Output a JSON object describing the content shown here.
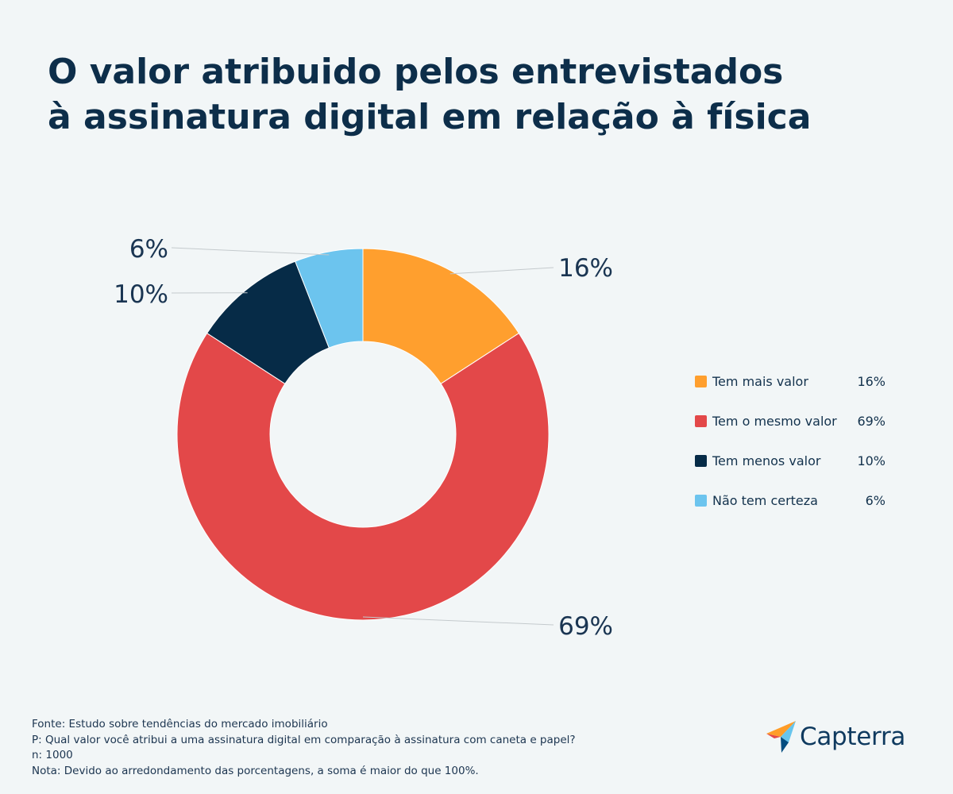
{
  "title": {
    "line1": "O valor atribuido pelos entrevistados",
    "line2": "à assinatura digital em relação à física"
  },
  "chart_data": {
    "type": "pie",
    "variant": "donut",
    "title": "O valor atribuido pelos entrevistados à assinatura digital em relação à física",
    "slices": [
      {
        "label": "Tem mais valor",
        "value": 16,
        "display": "16%",
        "color": "#ff9f2e"
      },
      {
        "label": "Tem o mesmo valor",
        "value": 69,
        "display": "69%",
        "color": "#e34849"
      },
      {
        "label": "Tem menos valor",
        "value": 10,
        "display": "10%",
        "color": "#062b47"
      },
      {
        "label": "Não tem certeza",
        "value": 6,
        "display": "6%",
        "color": "#6cc4ee"
      }
    ],
    "legend_position": "right"
  },
  "footer": {
    "source": "Fonte: Estudo sobre tendências do mercado imobiliário",
    "question": "P: Qual valor você atribui a uma assinatura digital em comparação à assinatura com caneta e papel?",
    "n": "n: 1000",
    "note": "Nota: Devido ao arredondamento das porcentagens, a soma é maior do que 100%."
  },
  "logo": {
    "text": "Capterra",
    "icon": "capterra-arrow-icon",
    "colors": [
      "#ff9d28",
      "#68c5ed",
      "#044d80",
      "#e54747"
    ]
  }
}
